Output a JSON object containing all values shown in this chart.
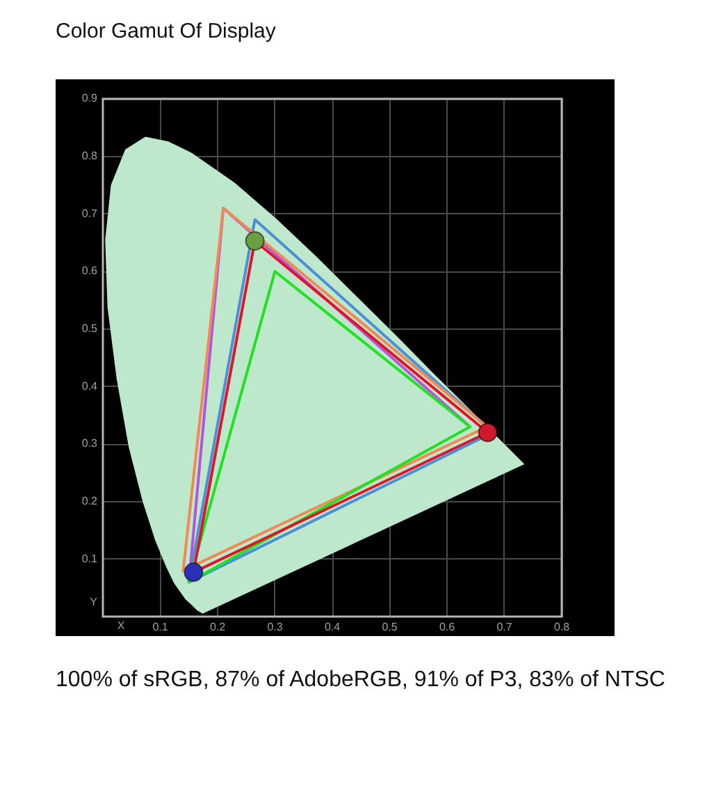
{
  "chart_data": {
    "type": "line",
    "title": "Color Gamut Of Display",
    "xlabel": "X",
    "ylabel": "Y",
    "annotations": [
      "100% of sRGB, 87% of AdobeRGB, 91% of P3, 83% of NTSC"
    ],
    "xlim": [
      0,
      0.8
    ],
    "ylim": [
      0,
      0.9
    ],
    "xticks": [
      0.1,
      0.2,
      0.3,
      0.4,
      0.5,
      0.6,
      0.7,
      0.8
    ],
    "yticks": [
      0.1,
      0.2,
      0.3,
      0.4,
      0.5,
      0.6,
      0.7,
      0.8,
      0.9
    ],
    "grid": true,
    "series": [
      {
        "type": "area",
        "color": "#bde8cc",
        "x": [
          0.174,
          0.164,
          0.157,
          0.144,
          0.124,
          0.11,
          0.091,
          0.069,
          0.045,
          0.024,
          0.008,
          0.004,
          0.014,
          0.039,
          0.074,
          0.114,
          0.155,
          0.23,
          0.302,
          0.373,
          0.444,
          0.513,
          0.575,
          0.627,
          0.666,
          0.692,
          0.719,
          0.735
        ],
        "values": [
          0.005,
          0.011,
          0.018,
          0.03,
          0.058,
          0.087,
          0.133,
          0.201,
          0.295,
          0.413,
          0.538,
          0.655,
          0.75,
          0.812,
          0.834,
          0.826,
          0.806,
          0.754,
          0.692,
          0.625,
          0.555,
          0.487,
          0.424,
          0.373,
          0.334,
          0.308,
          0.281,
          0.265
        ]
      },
      {
        "color": "#b455e0",
        "x": [
          0.15,
          0.21,
          0.64
        ],
        "values": [
          0.06,
          0.71,
          0.33
        ]
      },
      {
        "color": "#4a8fd8",
        "x": [
          0.15,
          0.265,
          0.68
        ],
        "values": [
          0.06,
          0.69,
          0.32
        ]
      },
      {
        "color": "#4a8fd8",
        "x": [
          0.15,
          0.68
        ],
        "values": [
          0.06,
          0.32
        ]
      },
      {
        "color": "#f08a55",
        "x": [
          0.14,
          0.21,
          0.67
        ],
        "values": [
          0.08,
          0.71,
          0.33
        ]
      },
      {
        "color": "#f08a55",
        "x": [
          0.14,
          0.67
        ],
        "values": [
          0.08,
          0.33
        ]
      },
      {
        "color": "#22e022",
        "x": [
          0.15,
          0.3,
          0.64
        ],
        "values": [
          0.06,
          0.6,
          0.33
        ]
      },
      {
        "color": "#22e022",
        "x": [
          0.15,
          0.64
        ],
        "values": [
          0.06,
          0.33
        ]
      },
      {
        "color": "#e0142a",
        "x": [
          0.158,
          0.265,
          0.671
        ],
        "values": [
          0.077,
          0.653,
          0.32
        ]
      },
      {
        "color": "#e0142a",
        "x": [
          0.158,
          0.671
        ],
        "values": [
          0.077,
          0.32
        ]
      },
      {
        "type": "scatter",
        "marker": "circle",
        "x": [
          0.265,
          0.671,
          0.158
        ],
        "values": [
          0.653,
          0.32,
          0.077
        ],
        "colors": [
          "#6aa040",
          "#d01a2a",
          "#2a30b8"
        ]
      }
    ]
  }
}
